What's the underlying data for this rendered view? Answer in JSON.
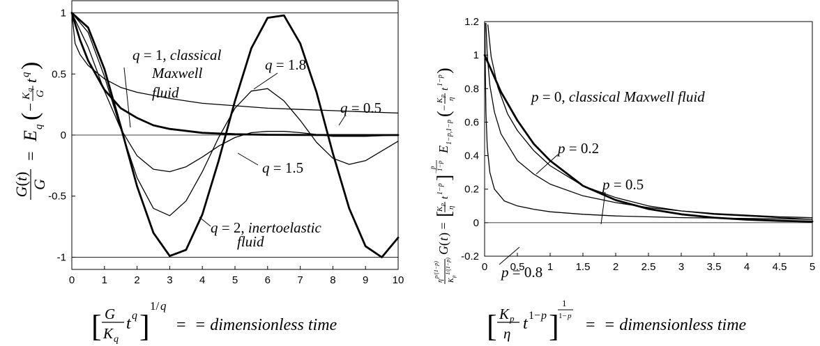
{
  "chart_data": [
    {
      "type": "line",
      "xlim": [
        0,
        10
      ],
      "ylim": [
        -1.1,
        1.1
      ],
      "xticks": [
        "0",
        "1",
        "2",
        "3",
        "4",
        "5",
        "6",
        "7",
        "8",
        "9",
        "10"
      ],
      "yticks": [
        "-1",
        "-0.5",
        "0",
        "0.5",
        "1"
      ],
      "grid": false,
      "reference_lines_y": [
        1,
        0,
        -1
      ],
      "ylabel": "G(t)/G = E_q(−(K_q/G) t^q)",
      "xlabel_suffix": "= dimensionless time",
      "annotations": [
        "q = 1, classical Maxwell fluid",
        "q = 1.8",
        "q = 0.5",
        "q = 1.5",
        "q = 2, inertoelastic fluid"
      ],
      "series": [
        {
          "name": "q = 0.5",
          "bold": false,
          "x": [
            0,
            0.1,
            0.25,
            0.5,
            1,
            1.5,
            2,
            3,
            4,
            5,
            6,
            7,
            8,
            9,
            10
          ],
          "y": [
            1,
            0.75,
            0.66,
            0.57,
            0.46,
            0.39,
            0.35,
            0.3,
            0.26,
            0.24,
            0.22,
            0.21,
            0.2,
            0.19,
            0.18
          ]
        },
        {
          "name": "q = 1",
          "bold": true,
          "x": [
            0,
            0.25,
            0.5,
            1,
            1.5,
            2,
            2.5,
            3,
            4,
            5,
            6,
            7,
            8,
            9,
            10
          ],
          "y": [
            1,
            0.78,
            0.61,
            0.37,
            0.22,
            0.14,
            0.08,
            0.05,
            0.018,
            0.007,
            0.002,
            0.001,
            0,
            0,
            0
          ]
        },
        {
          "name": "q = 1.5",
          "bold": false,
          "x": [
            0,
            0.5,
            1,
            1.5,
            2,
            2.5,
            3,
            3.5,
            4,
            4.5,
            5,
            5.5,
            6,
            6.5,
            7,
            8,
            9,
            10
          ],
          "y": [
            1,
            0.72,
            0.36,
            0.05,
            -0.17,
            -0.28,
            -0.3,
            -0.26,
            -0.18,
            -0.09,
            -0.02,
            0.02,
            0.03,
            0.03,
            0.02,
            -0.01,
            -0.01,
            0
          ]
        },
        {
          "name": "q = 1.8",
          "bold": false,
          "x": [
            0,
            0.5,
            1,
            1.5,
            2,
            2.5,
            3,
            3.5,
            4,
            4.5,
            5,
            5.5,
            6,
            6.5,
            7,
            7.5,
            8,
            8.5,
            9,
            9.5,
            10
          ],
          "y": [
            1,
            0.84,
            0.48,
            0.05,
            -0.35,
            -0.6,
            -0.66,
            -0.54,
            -0.3,
            -0.02,
            0.22,
            0.36,
            0.38,
            0.28,
            0.12,
            -0.06,
            -0.19,
            -0.24,
            -0.21,
            -0.13,
            -0.05
          ]
        },
        {
          "name": "q = 2",
          "bold": true,
          "x": [
            0,
            0.5,
            1,
            1.5,
            2,
            2.5,
            3,
            3.5,
            4,
            4.5,
            5,
            5.5,
            6,
            6.5,
            7,
            7.5,
            8,
            8.5,
            9,
            9.5,
            10
          ],
          "y": [
            1,
            0.88,
            0.54,
            0.07,
            -0.42,
            -0.8,
            -0.99,
            -0.94,
            -0.65,
            -0.21,
            0.28,
            0.71,
            0.96,
            0.98,
            0.75,
            0.35,
            -0.15,
            -0.6,
            -0.91,
            -1.0,
            -0.84
          ]
        }
      ]
    },
    {
      "type": "line",
      "xlim": [
        0,
        5
      ],
      "ylim": [
        -0.2,
        1.2
      ],
      "xticks": [
        "0",
        "0.5",
        "1",
        "1.5",
        "2",
        "2.5",
        "3",
        "3.5",
        "4",
        "4.5",
        "5"
      ],
      "yticks": [
        "-0.2",
        "0",
        "0.2",
        "0.4",
        "0.6",
        "0.8",
        "1",
        "1.2"
      ],
      "grid": false,
      "reference_lines_y": [
        0
      ],
      "ylabel": "(η^(p/(1−p)) / K_p^(1/(1−p))) G(t) = [(K_p/η) t^(1−p)]^(−p/(1−p)) E_(1−p,1−p)(−(K_p/η) t^(1−p))",
      "xlabel_suffix": "= dimensionless time",
      "annotations": [
        "p = 0, classical Maxwell fluid",
        "p = 0.2",
        "p = 0.5",
        "p = 0.8"
      ],
      "series": [
        {
          "name": "p = 0",
          "bold": true,
          "x": [
            0,
            0.25,
            0.5,
            0.75,
            1,
            1.5,
            2,
            2.5,
            3,
            3.5,
            4,
            4.5,
            5
          ],
          "y": [
            1,
            0.78,
            0.61,
            0.47,
            0.37,
            0.22,
            0.135,
            0.082,
            0.05,
            0.03,
            0.018,
            0.011,
            0.007
          ]
        },
        {
          "name": "p = 0.2",
          "bold": false,
          "x": [
            0.05,
            0.1,
            0.2,
            0.35,
            0.5,
            0.75,
            1,
            1.5,
            2,
            2.5,
            3,
            3.5,
            4,
            4.5,
            5
          ],
          "y": [
            1.18,
            0.99,
            0.81,
            0.65,
            0.55,
            0.43,
            0.34,
            0.22,
            0.15,
            0.1,
            0.07,
            0.05,
            0.04,
            0.03,
            0.02
          ]
        },
        {
          "name": "p = 0.5",
          "bold": false,
          "x": [
            0.02,
            0.04,
            0.08,
            0.15,
            0.25,
            0.5,
            0.75,
            1,
            1.5,
            2,
            2.5,
            3,
            3.5,
            4,
            4.5,
            5
          ],
          "y": [
            1.19,
            1.0,
            0.82,
            0.66,
            0.53,
            0.37,
            0.29,
            0.23,
            0.16,
            0.12,
            0.09,
            0.07,
            0.055,
            0.045,
            0.035,
            0.03
          ]
        },
        {
          "name": "p = 0.8",
          "bold": false,
          "x": [
            0.005,
            0.01,
            0.02,
            0.04,
            0.08,
            0.15,
            0.3,
            0.5,
            0.75,
            1,
            1.5,
            2,
            3,
            4,
            5
          ],
          "y": [
            1.19,
            0.95,
            0.66,
            0.45,
            0.3,
            0.2,
            0.13,
            0.1,
            0.08,
            0.065,
            0.05,
            0.04,
            0.03,
            0.025,
            0.02
          ]
        }
      ]
    }
  ]
}
